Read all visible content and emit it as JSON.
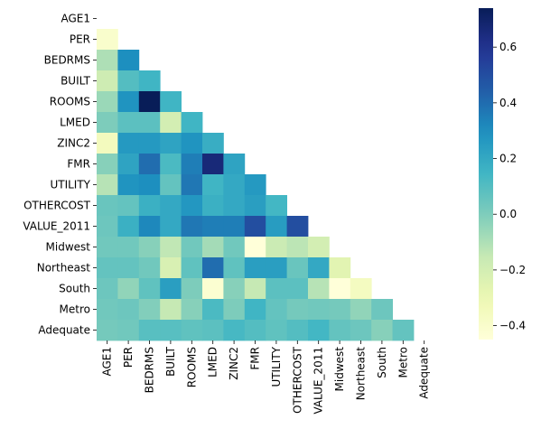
{
  "chart_data": {
    "type": "heatmap",
    "title": "",
    "xlabel": "",
    "ylabel": "",
    "variables": [
      "AGE1",
      "PER",
      "BEDRMS",
      "BUILT",
      "ROOMS",
      "LMED",
      "ZINC2",
      "FMR",
      "UTILITY",
      "OTHERCOST",
      "VALUE_2011",
      "Midwest",
      "Northeast",
      "South",
      "Metro",
      "Adequate"
    ],
    "mask": "upper-triangle-including-diagonal",
    "colormap": "YlGnBu",
    "vmin": -0.45,
    "vmax": 0.74,
    "colorbar_ticks": [
      -0.4,
      -0.2,
      0.0,
      0.2,
      0.4,
      0.6
    ],
    "colorbar_tick_labels": [
      "−0.4",
      "−0.2",
      "0.0",
      "0.2",
      "0.4",
      "0.6"
    ],
    "values": [
      [],
      [
        -0.4
      ],
      [
        -0.1,
        0.3
      ],
      [
        -0.18,
        0.1,
        0.15
      ],
      [
        -0.06,
        0.28,
        0.74,
        0.15
      ],
      [
        0.0,
        0.08,
        0.08,
        -0.2,
        0.15
      ],
      [
        -0.35,
        0.26,
        0.26,
        0.22,
        0.28,
        0.18
      ],
      [
        -0.02,
        0.22,
        0.4,
        0.12,
        0.35,
        0.66,
        0.22
      ],
      [
        -0.12,
        0.28,
        0.3,
        0.06,
        0.37,
        0.15,
        0.2,
        0.26
      ],
      [
        0.05,
        0.06,
        0.17,
        0.2,
        0.27,
        0.17,
        0.2,
        0.24,
        0.14
      ],
      [
        0.04,
        0.17,
        0.32,
        0.2,
        0.37,
        0.35,
        0.35,
        0.5,
        0.25,
        0.5
      ],
      [
        0.03,
        0.03,
        -0.02,
        -0.14,
        0.03,
        -0.08,
        0.03,
        -0.45,
        -0.17,
        -0.13,
        -0.2
      ],
      [
        0.06,
        0.06,
        0.03,
        -0.22,
        0.07,
        0.4,
        0.07,
        0.24,
        0.24,
        0.05,
        0.2,
        -0.26
      ],
      [
        0.04,
        -0.04,
        0.07,
        0.24,
        0.0,
        -0.42,
        -0.02,
        -0.15,
        0.08,
        0.08,
        -0.12,
        -0.46,
        -0.36
      ],
      [
        0.03,
        0.04,
        -0.01,
        -0.15,
        -0.02,
        0.12,
        0.0,
        0.15,
        0.06,
        0.02,
        0.03,
        0.02,
        -0.04,
        0.04
      ],
      [
        0.02,
        0.03,
        0.09,
        0.09,
        0.07,
        0.08,
        0.13,
        0.1,
        0.07,
        0.1,
        0.14,
        0.06,
        0.04,
        -0.02,
        0.06
      ]
    ]
  }
}
